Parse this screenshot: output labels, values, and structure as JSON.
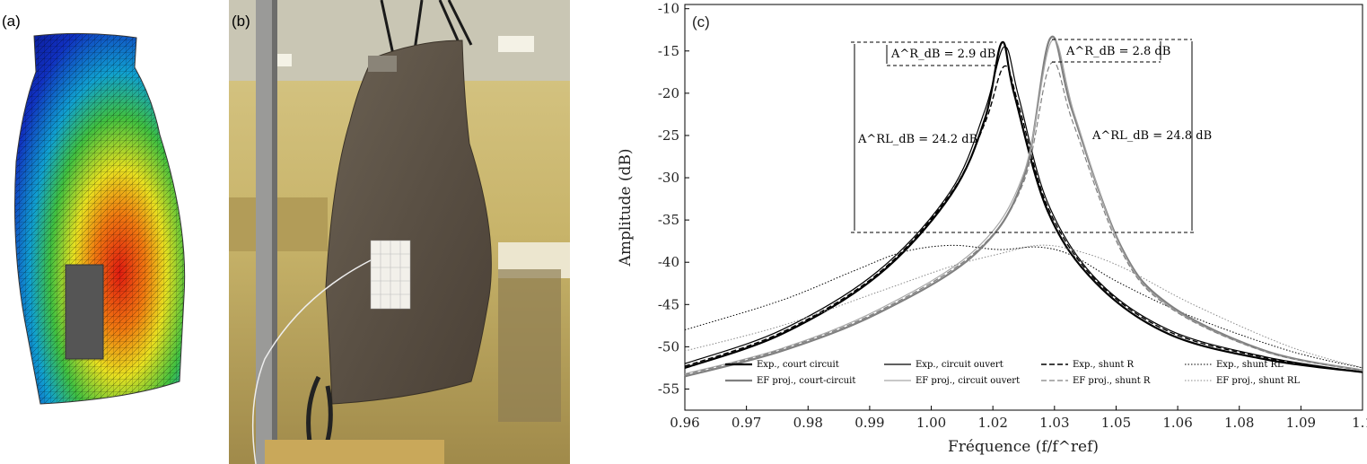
{
  "panels": {
    "a_label": "(a)",
    "b_label": "(b)",
    "c_label": "(c)"
  },
  "chart_data": {
    "type": "line",
    "xlabel": "Fréquence (f/f^ref)",
    "ylabel": "Amplitude (dB)",
    "xlim": [
      0.96,
      1.1
    ],
    "ylim": [
      -57.5,
      -9.5
    ],
    "xticks": [
      "0.96",
      "0.97",
      "0.98",
      "0.99",
      "1.00",
      "1.02",
      "1.03",
      "1.05",
      "1.06",
      "1.08",
      "1.09",
      "1.1"
    ],
    "yticks": [
      "-10",
      "-15",
      "-20",
      "-25",
      "-30",
      "-35",
      "-40",
      "-45",
      "-50",
      "-55"
    ],
    "grid": false,
    "legend_position": "bottom",
    "annotations": [
      {
        "text": "A^R_dB = 2.9 dB"
      },
      {
        "text": "A^R_dB = 2.8 dB"
      },
      {
        "text": "A^RL_dB = 24.2 dB"
      },
      {
        "text": "A^RL_dB = 24.8 dB"
      }
    ],
    "series": [
      {
        "name": "Exp., court circuit",
        "color": "#000000",
        "style": "solid",
        "width": 2.2,
        "x": [
          0.96,
          0.98,
          1.0,
          1.015,
          1.022,
          1.0255,
          1.028,
          1.035,
          1.045,
          1.06,
          1.08,
          1.1
        ],
        "y": [
          -52.5,
          -48.5,
          -41.5,
          -32.0,
          -23.0,
          -14.0,
          -20.0,
          -34.0,
          -42.5,
          -48.5,
          -51.5,
          -53.0
        ]
      },
      {
        "name": "Exp., circuit ouvert",
        "color": "#000000",
        "style": "solid",
        "width": 1.2,
        "x": [
          0.96,
          0.98,
          1.0,
          1.015,
          1.022,
          1.026,
          1.029,
          1.035,
          1.045,
          1.06,
          1.08,
          1.1
        ],
        "y": [
          -52.0,
          -48.0,
          -41.0,
          -31.5,
          -22.0,
          -14.5,
          -20.5,
          -33.0,
          -42.0,
          -48.0,
          -51.2,
          -53.0
        ]
      },
      {
        "name": "Exp., shunt R",
        "color": "#000000",
        "style": "dashed",
        "width": 1.4,
        "x": [
          0.96,
          0.98,
          1.0,
          1.015,
          1.022,
          1.026,
          1.029,
          1.035,
          1.045,
          1.06,
          1.08,
          1.1
        ],
        "y": [
          -52.3,
          -48.3,
          -41.3,
          -31.8,
          -23.5,
          -16.8,
          -21.5,
          -33.5,
          -42.2,
          -48.2,
          -51.3,
          -53.0
        ]
      },
      {
        "name": "Exp., shunt RL",
        "color": "#000000",
        "style": "dotted",
        "width": 1.0,
        "x": [
          0.96,
          0.98,
          0.995,
          1.005,
          1.015,
          1.025,
          1.033,
          1.04,
          1.05,
          1.065,
          1.085,
          1.1
        ],
        "y": [
          -48.0,
          -44.5,
          -41.0,
          -38.8,
          -38.0,
          -38.5,
          -38.2,
          -39.2,
          -42.5,
          -46.5,
          -50.5,
          -52.5
        ]
      },
      {
        "name": "EF proj., court-circuit",
        "color": "#808080",
        "style": "solid",
        "width": 2.2,
        "x": [
          0.96,
          0.98,
          1.0,
          1.02,
          1.03,
          1.0355,
          1.04,
          1.05,
          1.06,
          1.08,
          1.1
        ],
        "y": [
          -53.5,
          -50.5,
          -46.0,
          -39.0,
          -30.0,
          -13.5,
          -22.0,
          -38.0,
          -45.0,
          -50.5,
          -52.8
        ]
      },
      {
        "name": "EF proj., circuit ouvert",
        "color": "#a8a8a8",
        "style": "solid",
        "width": 1.2,
        "x": [
          0.96,
          0.98,
          1.0,
          1.02,
          1.03,
          1.0358,
          1.0405,
          1.05,
          1.06,
          1.08,
          1.1
        ],
        "y": [
          -53.2,
          -50.2,
          -45.6,
          -38.5,
          -29.5,
          -13.8,
          -22.5,
          -38.2,
          -45.2,
          -50.6,
          -52.8
        ]
      },
      {
        "name": "EF proj., shunt R",
        "color": "#808080",
        "style": "dashed",
        "width": 1.2,
        "x": [
          0.96,
          0.98,
          1.0,
          1.02,
          1.03,
          1.0356,
          1.0402,
          1.05,
          1.06,
          1.08,
          1.1
        ],
        "y": [
          -53.3,
          -50.3,
          -45.8,
          -38.8,
          -30.5,
          -16.5,
          -23.5,
          -38.5,
          -45.3,
          -50.6,
          -52.8
        ]
      },
      {
        "name": "EF proj., shunt RL",
        "color": "#8a8a8a",
        "style": "dotted",
        "width": 1.0,
        "x": [
          0.96,
          0.98,
          1.0,
          1.015,
          1.025,
          1.033,
          1.04,
          1.05,
          1.065,
          1.085,
          1.1
        ],
        "y": [
          -50.5,
          -47.5,
          -43.5,
          -40.5,
          -39.0,
          -38.0,
          -38.5,
          -40.5,
          -45.0,
          -50.0,
          -52.5
        ]
      }
    ]
  }
}
